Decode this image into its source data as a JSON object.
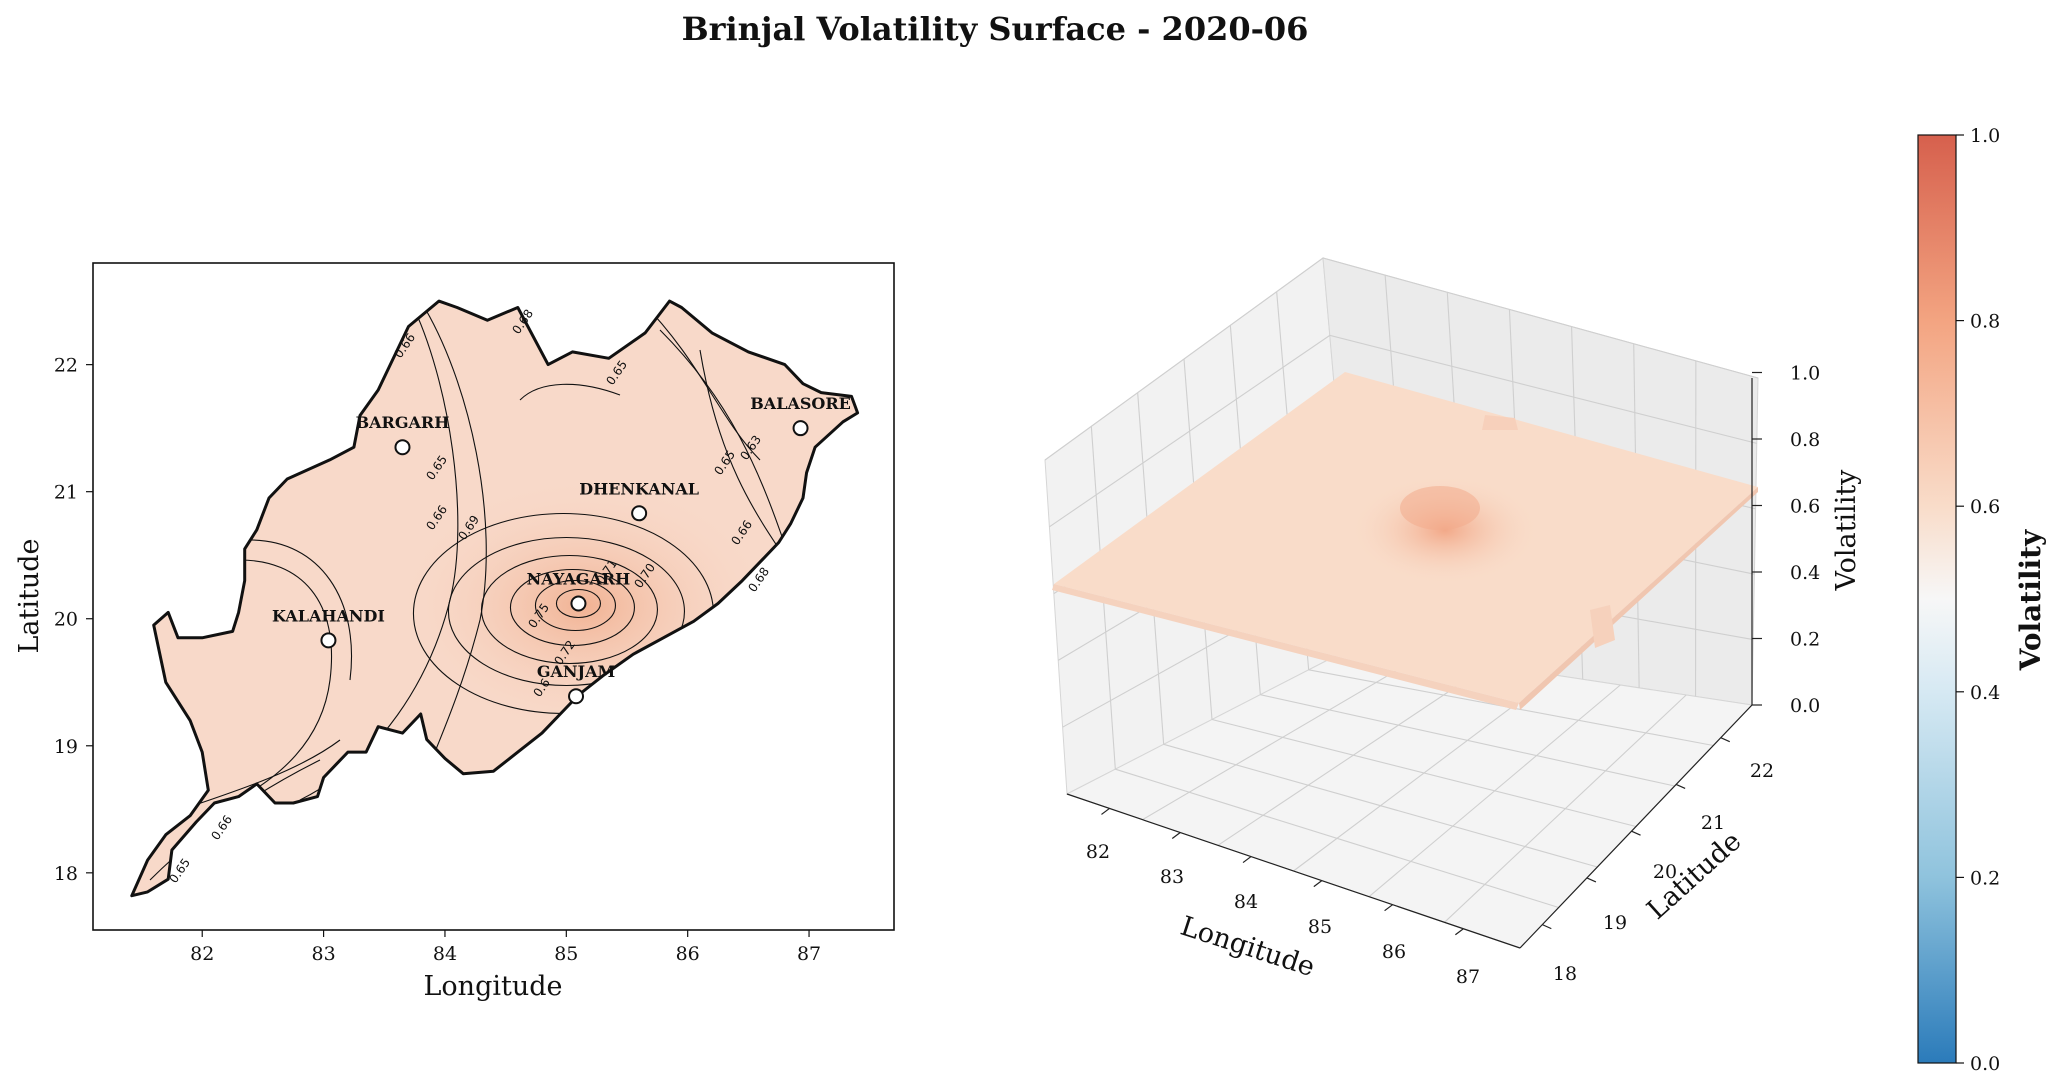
{
  "chart_data": [
    {
      "type": "heatmap",
      "subtype": "contour-map",
      "title": "Brinjal Volatility Surface - 2020-06",
      "xlabel": "Longitude",
      "ylabel": "Latitude",
      "xlim": [
        81.1,
        87.7
      ],
      "ylim": [
        17.55,
        22.8
      ],
      "xticks": [
        82,
        83,
        84,
        85,
        86,
        87
      ],
      "yticks": [
        18,
        19,
        20,
        21,
        22
      ],
      "cities": [
        {
          "name": "BARGARH",
          "lon": 83.65,
          "lat": 21.35
        },
        {
          "name": "BALASORE",
          "lon": 86.93,
          "lat": 21.5
        },
        {
          "name": "DHENKANAL",
          "lon": 85.6,
          "lat": 20.83
        },
        {
          "name": "NAYAGARH",
          "lon": 85.1,
          "lat": 20.12
        },
        {
          "name": "KALAHANDI",
          "lon": 83.04,
          "lat": 19.83
        },
        {
          "name": "GANJAM",
          "lon": 85.08,
          "lat": 19.39
        }
      ],
      "contour_labels": [
        "0.65",
        "0.66",
        "0.69",
        "0.70",
        "0.72",
        "0.75",
        "0.71",
        "0.68",
        "0.63",
        "0.65",
        "0.66",
        "0.68",
        "0.66",
        "0.65",
        "0.66",
        "0.65",
        "0.6"
      ],
      "peak_volatility": 0.77,
      "base_volatility": 0.64
    },
    {
      "type": "surface3d",
      "xlabel": "Longitude",
      "ylabel": "Latitude",
      "zlabel": "Volatility",
      "xticks": [
        82,
        83,
        84,
        85,
        86,
        87
      ],
      "yticks": [
        18,
        19,
        20,
        21,
        22
      ],
      "zticks": [
        "0.0",
        "0.2",
        "0.4",
        "0.6",
        "0.8",
        "1.0"
      ],
      "zlim": [
        0,
        1
      ],
      "surface_base": 0.64,
      "surface_peak": 0.77,
      "peak_location": {
        "lon": 85.1,
        "lat": 20.12
      }
    }
  ],
  "colorbar": {
    "label": "Volatility",
    "ticks": [
      "0.0",
      "0.2",
      "0.4",
      "0.6",
      "0.8",
      "1.0"
    ],
    "colormap": "RdBu_r",
    "stops": [
      "#2b7bba",
      "#8fc3dd",
      "#d6e9f3",
      "#f7f7f7",
      "#f8cbb0",
      "#ea8e6e",
      "#d6604d"
    ]
  },
  "colors": {
    "fill": "#f8d9c9",
    "fill_hot": "#f2b99d",
    "surface": "#f9dcc9"
  }
}
